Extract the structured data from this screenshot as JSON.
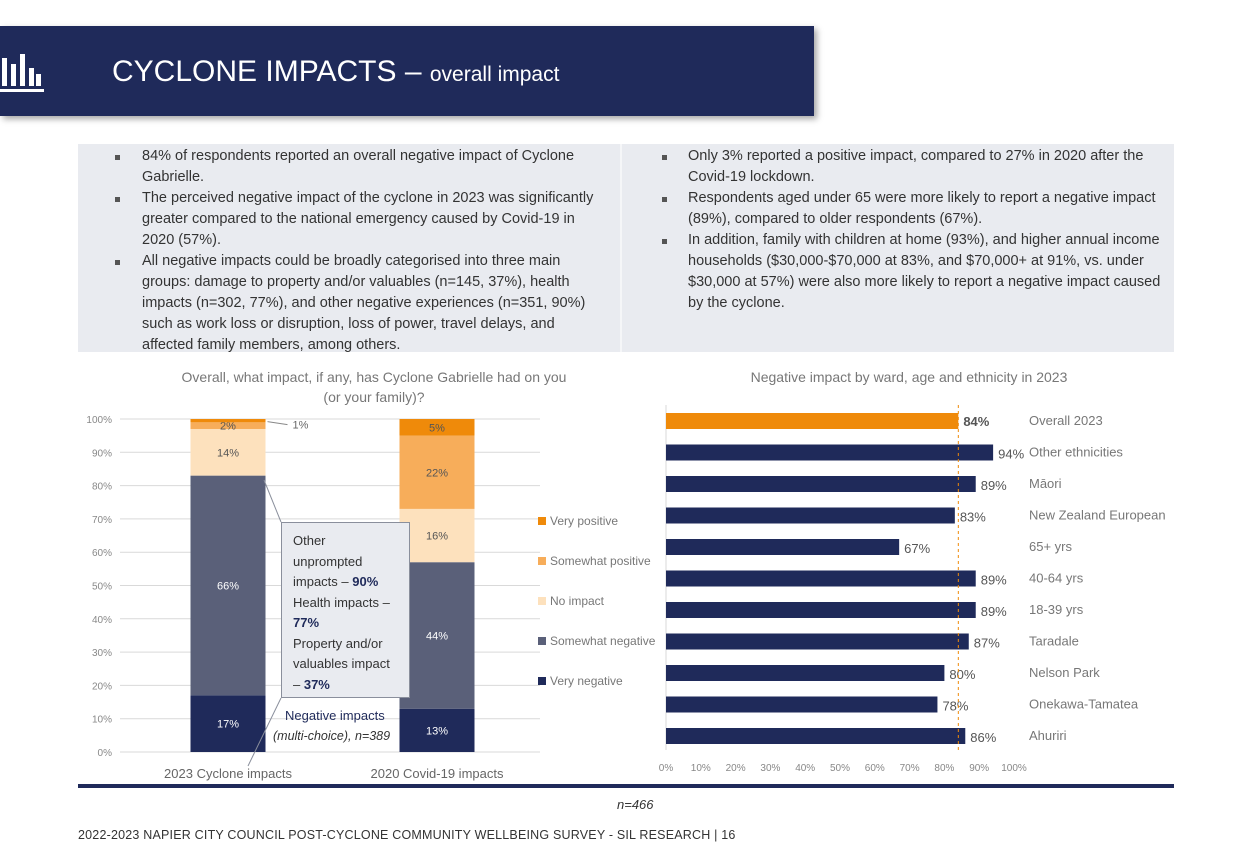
{
  "header": {
    "title": "CYCLONE IMPACTS",
    "dash": "–",
    "subtitle": "overall impact"
  },
  "summary": {
    "left": [
      "84% of respondents reported an overall negative impact of Cyclone Gabrielle.",
      "The perceived negative impact of the cyclone in 2023 was significantly greater compared to the national emergency caused by Covid-19 in 2020 (57%).",
      "All negative impacts could be broadly categorised into three main groups: damage to property and/or valuables (n=145, 37%), health impacts (n=302, 77%), and other negative experiences (n=351, 90%) such as work loss or disruption, loss of power, travel delays, and affected family members, among others."
    ],
    "right": [
      "Only 3% reported a positive impact, compared to 27% in 2020 after the Covid-19 lockdown.",
      "Respondents aged under 65 were more likely to report a negative impact (89%), compared to older respondents (67%).",
      "In addition, family with children at home (93%), and higher annual income households ($30,000-$70,000 at 83%, and $70,000+ at 91%, vs. under $30,000 at 57%) were also more likely to report a negative impact caused by the cyclone."
    ]
  },
  "callout": {
    "line1": "Other",
    "line2": "unprompted",
    "line3a": "impacts – ",
    "line3b": "90%",
    "line4": "Health impacts –",
    "line5": "77%",
    "line6": "Property and/or",
    "line7": "valuables impact",
    "line8a": "– ",
    "line8b": "37%",
    "neg_title": "Negative impacts",
    "neg_sub": "(multi-choice), n=389"
  },
  "footer": {
    "n": "n=466",
    "text": "2022-2023 NAPIER CITY COUNCIL POST-CYCLONE COMMUNITY WELLBEING SURVEY - SIL RESEARCH | 16"
  },
  "chart_data": [
    {
      "type": "bar",
      "stacked": true,
      "title": "Overall, what impact, if any, has Cyclone Gabrielle had on you (or your family)?",
      "categories": [
        "2023 Cyclone impacts",
        "2020 Covid-19 impacts"
      ],
      "ylim": [
        0,
        100
      ],
      "yticks": [
        "0%",
        "10%",
        "20%",
        "30%",
        "40%",
        "50%",
        "60%",
        "70%",
        "80%",
        "90%",
        "100%"
      ],
      "series": [
        {
          "name": "Very negative",
          "values": [
            17,
            13
          ],
          "labels": [
            "17%",
            "13%"
          ],
          "color": "#1f2a5a",
          "text_color": "#ffffff"
        },
        {
          "name": "Somewhat negative",
          "values": [
            66,
            44
          ],
          "labels": [
            "66%",
            "44%"
          ],
          "color": "#5a6079",
          "text_color": "#ffffff"
        },
        {
          "name": "No impact",
          "values": [
            14,
            16
          ],
          "labels": [
            "14%",
            "16%"
          ],
          "color": "#fde1bd",
          "text_color": "#555555"
        },
        {
          "name": "Somewhat positive",
          "values": [
            2,
            22
          ],
          "labels": [
            "2%",
            "22%"
          ],
          "color": "#f7ad5a",
          "text_color": "#555555"
        },
        {
          "name": "Very positive",
          "values": [
            1,
            5
          ],
          "labels": [
            "1%",
            "5%"
          ],
          "color": "#ef8a0a",
          "text_color": "#555555"
        }
      ],
      "legend": [
        "Very positive",
        "Somewhat positive",
        "No impact",
        "Somewhat negative",
        "Very negative"
      ],
      "grid": true
    },
    {
      "type": "bar",
      "orientation": "horizontal",
      "title": "Negative impact by ward, age and ethnicity in 2023",
      "categories": [
        "Overall 2023",
        "Other ethnicities",
        "Māori",
        "New Zealand European",
        "65+ yrs",
        "40-64 yrs",
        "18-39 yrs",
        "Taradale",
        "Nelson Park",
        "Onekawa-Tamatea",
        "Ahuriri"
      ],
      "values": [
        84,
        94,
        89,
        83,
        67,
        89,
        89,
        87,
        80,
        78,
        86
      ],
      "labels": [
        "84%",
        "94%",
        "89%",
        "83%",
        "67%",
        "89%",
        "89%",
        "87%",
        "80%",
        "78%",
        "86%"
      ],
      "colors": {
        "highlight": "#ef8a0a",
        "bar": "#1f2a5a"
      },
      "reference_line": 84,
      "xlim": [
        0,
        100
      ],
      "xticks": [
        "0%",
        "10%",
        "20%",
        "30%",
        "40%",
        "50%",
        "60%",
        "70%",
        "80%",
        "90%",
        "100%"
      ],
      "grid": false
    }
  ]
}
